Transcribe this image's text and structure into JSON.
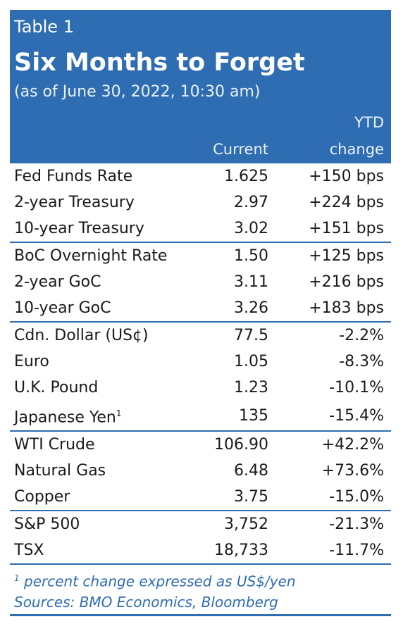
{
  "header": {
    "label": "Table 1",
    "title": "Six Months to Forget",
    "subtitle": "(as of June 30, 2022, 10:30 am)",
    "col_current": "Current",
    "col_ytd": "YTD",
    "col_change": "change"
  },
  "rows": [
    {
      "name": "Fed Funds Rate",
      "current": "1.625",
      "change": "+150 bps"
    },
    {
      "name": "2-year Treasury",
      "current": "2.97",
      "change": "+224 bps"
    },
    {
      "name": "10-year Treasury",
      "current": "3.02",
      "change": "+151 bps"
    },
    {
      "name": "BoC Overnight Rate",
      "current": "1.50",
      "change": "+125 bps"
    },
    {
      "name": "2-year GoC",
      "current": "3.11",
      "change": "+216 bps"
    },
    {
      "name": "10-year GoC",
      "current": "3.26",
      "change": "+183 bps"
    },
    {
      "name": "Cdn. Dollar (US¢)",
      "current": "77.5",
      "change": "-2.2%"
    },
    {
      "name": "Euro",
      "current": "1.05",
      "change": "-8.3%"
    },
    {
      "name": "U.K. Pound",
      "current": "1.23",
      "change": "-10.1%"
    },
    {
      "name": "Japanese Yen",
      "footnote_mark": "1",
      "current": "135",
      "change": "-15.4%"
    },
    {
      "name": "WTI Crude",
      "current": "106.90",
      "change": "+42.2%"
    },
    {
      "name": "Natural Gas",
      "current": "6.48",
      "change": "+73.6%"
    },
    {
      "name": "Copper",
      "current": "3.75",
      "change": "-15.0%"
    },
    {
      "name": "S&P 500",
      "current": "3,752",
      "change": "-21.3%"
    },
    {
      "name": "TSX",
      "current": "18,733",
      "change": "-11.7%"
    }
  ],
  "footer": {
    "footnote_mark": "1",
    "footnote": " percent change expressed as US$/yen",
    "sources": "Sources: BMO Economics, Bloomberg"
  }
}
